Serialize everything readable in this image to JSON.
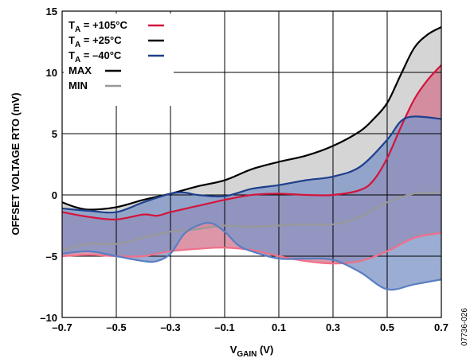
{
  "chart_data": {
    "type": "area",
    "xlabel_main": "V",
    "xlabel_sub": "GAIN",
    "xlabel_unit": " (V)",
    "ylabel": "OFFSET VOLTAGE RTO (mV)",
    "xlim": [
      -0.7,
      0.7
    ],
    "ylim": [
      -10,
      15
    ],
    "x_ticks": [
      -0.7,
      -0.5,
      -0.3,
      -0.1,
      0.1,
      0.3,
      0.5,
      0.7
    ],
    "x_tick_labels": [
      "–0.7",
      "–0.5",
      "–0.3",
      "–0.1",
      "0.1",
      "0.3",
      "0.5",
      "0.7"
    ],
    "y_ticks": [
      -10,
      -5,
      0,
      5,
      10,
      15
    ],
    "y_tick_labels": [
      "–10",
      "–5",
      "0",
      "5",
      "10",
      "15"
    ],
    "grid": true,
    "legend_placement": "top-left",
    "figure_id": "07736-026",
    "legend": [
      {
        "pre": "T",
        "sub": "A",
        "post": " = +105°C",
        "color": "#d4143c"
      },
      {
        "pre": "T",
        "sub": "A",
        "post": " = +25°C",
        "color": "#000000"
      },
      {
        "pre": "T",
        "sub": "A",
        "post": " = –40°C",
        "color": "#1e3f8c"
      },
      {
        "pre": "MAX",
        "sub": "",
        "post": "",
        "color": "#000000"
      },
      {
        "pre": "MIN",
        "sub": "",
        "post": "",
        "color": "#999999"
      }
    ],
    "series": [
      {
        "name": "TA = +25°C",
        "line_color": "#000000",
        "min_color": "#999999",
        "fill": "#c9c9c9",
        "max": [
          [
            -0.7,
            -0.6
          ],
          [
            -0.65,
            -1.0
          ],
          [
            -0.6,
            -1.2
          ],
          [
            -0.5,
            -1.0
          ],
          [
            -0.4,
            -0.4
          ],
          [
            -0.3,
            0.1
          ],
          [
            -0.2,
            0.7
          ],
          [
            -0.1,
            1.2
          ],
          [
            0.0,
            2.1
          ],
          [
            0.1,
            2.7
          ],
          [
            0.2,
            3.2
          ],
          [
            0.3,
            4.0
          ],
          [
            0.4,
            5.2
          ],
          [
            0.45,
            6.2
          ],
          [
            0.5,
            7.5
          ],
          [
            0.55,
            9.8
          ],
          [
            0.6,
            12.0
          ],
          [
            0.65,
            13.1
          ],
          [
            0.7,
            13.7
          ]
        ],
        "min": [
          [
            -0.7,
            -4.5
          ],
          [
            -0.6,
            -4.0
          ],
          [
            -0.5,
            -4.0
          ],
          [
            -0.4,
            -3.5
          ],
          [
            -0.3,
            -3.0
          ],
          [
            -0.2,
            -2.8
          ],
          [
            -0.1,
            -2.5
          ],
          [
            0.0,
            -2.6
          ],
          [
            0.1,
            -2.5
          ],
          [
            0.2,
            -2.4
          ],
          [
            0.3,
            -2.4
          ],
          [
            0.4,
            -1.8
          ],
          [
            0.5,
            -0.6
          ],
          [
            0.6,
            0.1
          ],
          [
            0.7,
            0.2
          ]
        ]
      },
      {
        "name": "TA = +105°C",
        "line_color": "#d4143c",
        "min_color": "#f07088",
        "fill": "#d2788f",
        "max": [
          [
            -0.7,
            -1.4
          ],
          [
            -0.6,
            -1.8
          ],
          [
            -0.5,
            -2.0
          ],
          [
            -0.4,
            -1.6
          ],
          [
            -0.35,
            -1.7
          ],
          [
            -0.3,
            -1.4
          ],
          [
            -0.2,
            -0.9
          ],
          [
            -0.1,
            -0.4
          ],
          [
            0.0,
            0.0
          ],
          [
            0.1,
            0.1
          ],
          [
            0.2,
            0.0
          ],
          [
            0.3,
            0.0
          ],
          [
            0.4,
            0.4
          ],
          [
            0.45,
            1.2
          ],
          [
            0.5,
            3.0
          ],
          [
            0.55,
            5.5
          ],
          [
            0.6,
            7.8
          ],
          [
            0.65,
            9.4
          ],
          [
            0.7,
            10.6
          ]
        ],
        "min": [
          [
            -0.7,
            -5.0
          ],
          [
            -0.6,
            -4.9
          ],
          [
            -0.5,
            -5.0
          ],
          [
            -0.4,
            -5.0
          ],
          [
            -0.3,
            -4.6
          ],
          [
            -0.2,
            -4.4
          ],
          [
            -0.1,
            -4.3
          ],
          [
            0.0,
            -4.5
          ],
          [
            0.1,
            -5.0
          ],
          [
            0.2,
            -5.4
          ],
          [
            0.3,
            -5.6
          ],
          [
            0.4,
            -5.4
          ],
          [
            0.5,
            -4.6
          ],
          [
            0.6,
            -3.5
          ],
          [
            0.7,
            -3.1
          ]
        ]
      },
      {
        "name": "TA = –40°C",
        "line_color": "#1e3f8c",
        "min_color": "#5a7ec2",
        "fill": "#7f96c6",
        "max": [
          [
            -0.7,
            -1.1
          ],
          [
            -0.6,
            -1.3
          ],
          [
            -0.5,
            -1.4
          ],
          [
            -0.4,
            -0.6
          ],
          [
            -0.3,
            0.1
          ],
          [
            -0.25,
            0.2
          ],
          [
            -0.2,
            0.0
          ],
          [
            -0.1,
            -0.1
          ],
          [
            0.0,
            0.5
          ],
          [
            0.1,
            0.8
          ],
          [
            0.2,
            1.2
          ],
          [
            0.3,
            1.5
          ],
          [
            0.4,
            2.3
          ],
          [
            0.5,
            4.5
          ],
          [
            0.55,
            6.0
          ],
          [
            0.6,
            6.4
          ],
          [
            0.7,
            6.2
          ]
        ],
        "min": [
          [
            -0.7,
            -4.8
          ],
          [
            -0.6,
            -4.6
          ],
          [
            -0.5,
            -5.0
          ],
          [
            -0.4,
            -5.4
          ],
          [
            -0.35,
            -5.4
          ],
          [
            -0.3,
            -4.8
          ],
          [
            -0.25,
            -3.2
          ],
          [
            -0.2,
            -2.5
          ],
          [
            -0.15,
            -2.3
          ],
          [
            -0.1,
            -3.0
          ],
          [
            -0.05,
            -4.1
          ],
          [
            0.0,
            -4.6
          ],
          [
            0.1,
            -5.2
          ],
          [
            0.2,
            -5.2
          ],
          [
            0.3,
            -5.3
          ],
          [
            0.4,
            -6.3
          ],
          [
            0.5,
            -7.7
          ],
          [
            0.6,
            -7.3
          ],
          [
            0.7,
            -6.9
          ]
        ]
      }
    ]
  }
}
